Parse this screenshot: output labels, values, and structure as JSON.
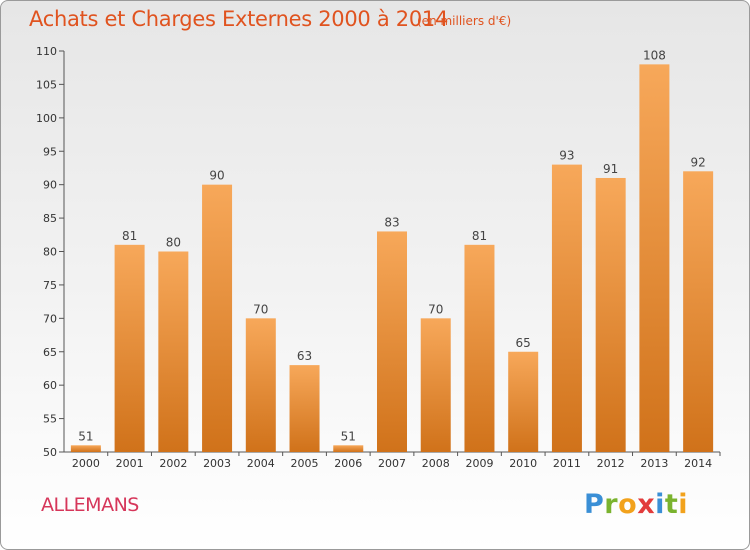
{
  "title": "Achats et Charges Externes 2000 à 2014",
  "unit_note": "(en milliers d'€)",
  "commune": "ALLEMANS",
  "logo": {
    "letters": [
      "P",
      "r",
      "o",
      "x",
      "i",
      "t",
      "i"
    ],
    "colors": [
      "#3a8fd6",
      "#7ab32e",
      "#f2a21c",
      "#e23b3b",
      "#3a8fd6",
      "#7ab32e",
      "#f2a21c"
    ]
  },
  "colors": {
    "bar_top": "#f7a85a",
    "bar_bottom": "#d0721a",
    "title": "#e0531f",
    "commune": "#d6365a"
  },
  "chart_data": {
    "type": "bar",
    "title": "Achats et Charges Externes 2000 à 2014",
    "categories": [
      "2000",
      "2001",
      "2002",
      "2003",
      "2004",
      "2005",
      "2006",
      "2007",
      "2008",
      "2009",
      "2010",
      "2011",
      "2012",
      "2013",
      "2014"
    ],
    "values": [
      51,
      81,
      80,
      90,
      70,
      63,
      51,
      83,
      70,
      81,
      65,
      93,
      91,
      108,
      92
    ],
    "ylim": [
      50,
      110
    ],
    "yticks": [
      50,
      55,
      60,
      65,
      70,
      75,
      80,
      85,
      90,
      95,
      100,
      105,
      110
    ],
    "xlabel": "",
    "ylabel": "",
    "grid": false,
    "data_labels": true
  }
}
